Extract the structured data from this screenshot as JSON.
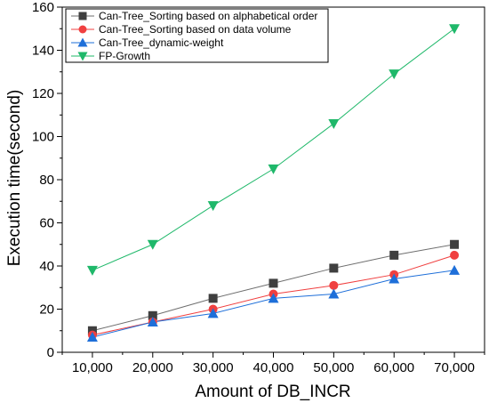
{
  "chart_data": {
    "type": "line",
    "title": "",
    "xlabel": "Amount of DB_INCR",
    "ylabel": "Execution time(second)",
    "x": [
      10000,
      20000,
      30000,
      40000,
      50000,
      60000,
      70000
    ],
    "x_tick_labels": [
      "10,000",
      "20,000",
      "30,000",
      "40,000",
      "50,000",
      "60,000",
      "70,000"
    ],
    "xlim": [
      5000,
      75000
    ],
    "ylim": [
      0,
      160
    ],
    "y_ticks": [
      0,
      20,
      40,
      60,
      80,
      100,
      120,
      140,
      160
    ],
    "grid": false,
    "legend_position": "top-left",
    "series": [
      {
        "name": "Can-Tree_Sorting based on alphabetical order",
        "marker": "square",
        "color": "#3f3f3f",
        "line_color": "#6e6e6e",
        "values": [
          10,
          17,
          25,
          32,
          39,
          45,
          50
        ]
      },
      {
        "name": "Can-Tree_Sorting based on data volume",
        "marker": "circle",
        "color": "#f04040",
        "line_color": "#f04040",
        "values": [
          8,
          14,
          20,
          27,
          31,
          36,
          45
        ]
      },
      {
        "name": "Can-Tree_dynamic-weight",
        "marker": "triangle-up",
        "color": "#1e6fd9",
        "line_color": "#1e6fd9",
        "values": [
          7,
          14,
          18,
          25,
          27,
          34,
          38
        ]
      },
      {
        "name": "FP-Growth",
        "marker": "triangle-down",
        "color": "#1fb86a",
        "line_color": "#1fb86a",
        "values": [
          38,
          50,
          68,
          85,
          106,
          129,
          150
        ]
      }
    ]
  }
}
